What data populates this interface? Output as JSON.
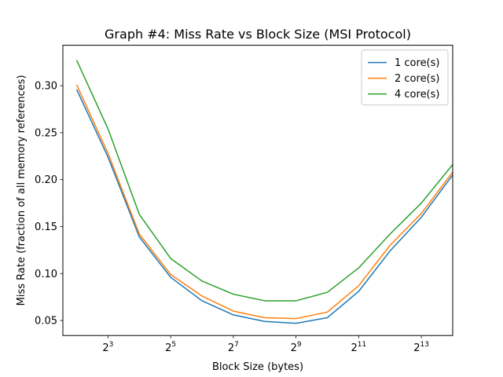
{
  "chart_data": {
    "type": "line",
    "title": "Graph #4: Miss Rate vs Block Size (MSI Protocol)",
    "xlabel": "Block Size (bytes)",
    "ylabel": "Miss Rate (fraction of all memory references)",
    "x_scale": "log2",
    "x": [
      4,
      8,
      16,
      32,
      64,
      128,
      256,
      512,
      1024,
      2048,
      4096,
      8192,
      16384
    ],
    "xlim": [
      2.95,
      16384
    ],
    "ylim": [
      0.034,
      0.343
    ],
    "x_ticks": [
      {
        "value": 8,
        "base": "2",
        "exp": "3"
      },
      {
        "value": 32,
        "base": "2",
        "exp": "5"
      },
      {
        "value": 128,
        "base": "2",
        "exp": "7"
      },
      {
        "value": 512,
        "base": "2",
        "exp": "9"
      },
      {
        "value": 2048,
        "base": "2",
        "exp": "11"
      },
      {
        "value": 8192,
        "base": "2",
        "exp": "13"
      }
    ],
    "y_ticks": [
      {
        "value": 0.05,
        "label": "0.05"
      },
      {
        "value": 0.1,
        "label": "0.10"
      },
      {
        "value": 0.15,
        "label": "0.15"
      },
      {
        "value": 0.2,
        "label": "0.20"
      },
      {
        "value": 0.25,
        "label": "0.25"
      },
      {
        "value": 0.3,
        "label": "0.30"
      }
    ],
    "grid": false,
    "legend_position": "top-right",
    "series": [
      {
        "name": "1 core(s)",
        "color": "#1f77b4",
        "values": [
          0.296,
          0.224,
          0.139,
          0.096,
          0.071,
          0.056,
          0.049,
          0.047,
          0.053,
          0.081,
          0.124,
          0.16,
          0.205
        ]
      },
      {
        "name": "2 core(s)",
        "color": "#ff7f0e",
        "values": [
          0.301,
          0.228,
          0.142,
          0.099,
          0.076,
          0.06,
          0.053,
          0.052,
          0.059,
          0.087,
          0.13,
          0.164,
          0.208
        ]
      },
      {
        "name": "4 core(s)",
        "color": "#2ca02c",
        "values": [
          0.327,
          0.254,
          0.163,
          0.116,
          0.092,
          0.078,
          0.071,
          0.071,
          0.08,
          0.106,
          0.142,
          0.175,
          0.216
        ]
      }
    ]
  }
}
